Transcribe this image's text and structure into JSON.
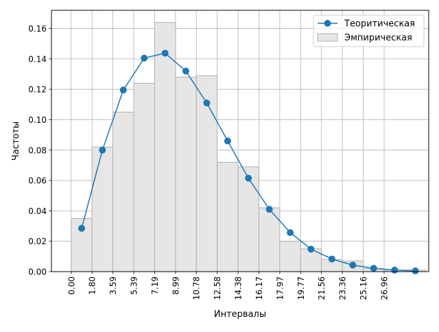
{
  "chart_data": {
    "type": "bar",
    "title": "",
    "xlabel": "Интервалы",
    "ylabel": "Частоты",
    "xlim": [
      -1.7,
      30.8
    ],
    "ylim": [
      0,
      0.172
    ],
    "grid": true,
    "legend_position": "top-right",
    "x_ticks": [
      0.0,
      1.8,
      3.59,
      5.39,
      7.19,
      8.99,
      10.78,
      12.58,
      14.38,
      16.17,
      17.97,
      19.77,
      21.56,
      23.36,
      25.16,
      26.96
    ],
    "x_tick_labels": [
      "0.00",
      "1.80",
      "3.59",
      "5.39",
      "7.19",
      "8.99",
      "10.78",
      "12.58",
      "14.38",
      "16.17",
      "17.97",
      "19.77",
      "21.56",
      "23.36",
      "25.16",
      "26.96"
    ],
    "y_ticks": [
      0.0,
      0.02,
      0.04,
      0.06,
      0.08,
      0.1,
      0.12,
      0.14,
      0.16
    ],
    "y_tick_labels": [
      "0.00",
      "0.02",
      "0.04",
      "0.06",
      "0.08",
      "0.10",
      "0.12",
      "0.14",
      "0.16"
    ],
    "series": [
      {
        "name": "Эмпирическая",
        "kind": "histogram",
        "color": "#e6e6e6",
        "edge_color": "#b0b0b0",
        "bin_edges": [
          0.0,
          1.8,
          3.59,
          5.39,
          7.19,
          8.99,
          10.78,
          12.58,
          14.38,
          16.17,
          17.97,
          19.77,
          21.56,
          23.36,
          25.16,
          26.96,
          28.76,
          30.55
        ],
        "values": [
          0.035,
          0.082,
          0.105,
          0.124,
          0.164,
          0.128,
          0.129,
          0.072,
          0.069,
          0.042,
          0.02,
          0.015,
          0.008,
          0.007,
          0.002,
          0.001,
          0.001
        ]
      },
      {
        "name": "Теоритическая",
        "kind": "line",
        "color": "#1f77b4",
        "marker": "circle",
        "x": [
          0.9,
          2.69,
          4.49,
          6.29,
          8.09,
          9.88,
          11.68,
          13.48,
          15.27,
          17.07,
          18.87,
          20.66,
          22.46,
          24.26,
          26.06,
          27.86,
          29.65
        ],
        "values": [
          0.0285,
          0.08,
          0.1195,
          0.1405,
          0.1438,
          0.132,
          0.111,
          0.086,
          0.0615,
          0.041,
          0.0257,
          0.0148,
          0.0083,
          0.0043,
          0.0022,
          0.001,
          0.0005
        ]
      }
    ]
  }
}
